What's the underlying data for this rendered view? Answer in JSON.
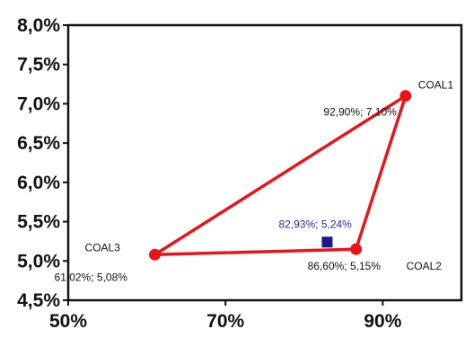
{
  "chart_data": {
    "type": "scatter",
    "xlim": [
      0.5,
      1.0
    ],
    "ylim": [
      0.045,
      0.08
    ],
    "x_ticks": [
      0.5,
      0.7,
      0.9
    ],
    "x_tick_labels": [
      "50%",
      "70%",
      "90%"
    ],
    "y_ticks": [
      0.045,
      0.05,
      0.055,
      0.06,
      0.065,
      0.07,
      0.075,
      0.08
    ],
    "y_tick_labels": [
      "4,5%",
      "5,0%",
      "5,5%",
      "6,0%",
      "6,5%",
      "7,0%",
      "7,5%",
      "8,0%"
    ],
    "grid": false,
    "points": [
      {
        "name": "COAL1",
        "x": 0.929,
        "y": 0.071,
        "label": "92,90%; 7,10%",
        "color": "#e8141a",
        "marker": "circle"
      },
      {
        "name": "COAL2",
        "x": 0.866,
        "y": 0.0515,
        "label": "86,60%; 5,15%",
        "color": "#e8141a",
        "marker": "circle"
      },
      {
        "name": "COAL3",
        "x": 0.6102,
        "y": 0.0508,
        "label": "61,02%; 5,08%",
        "color": "#e8141a",
        "marker": "circle"
      },
      {
        "name": "",
        "x": 0.8293,
        "y": 0.0524,
        "label": "82,93%; 5,24%",
        "color": "#1a1a8c",
        "marker": "square"
      }
    ],
    "triangle_order": [
      "COAL1",
      "COAL2",
      "COAL3"
    ],
    "triangle_color": "#e8141a"
  }
}
